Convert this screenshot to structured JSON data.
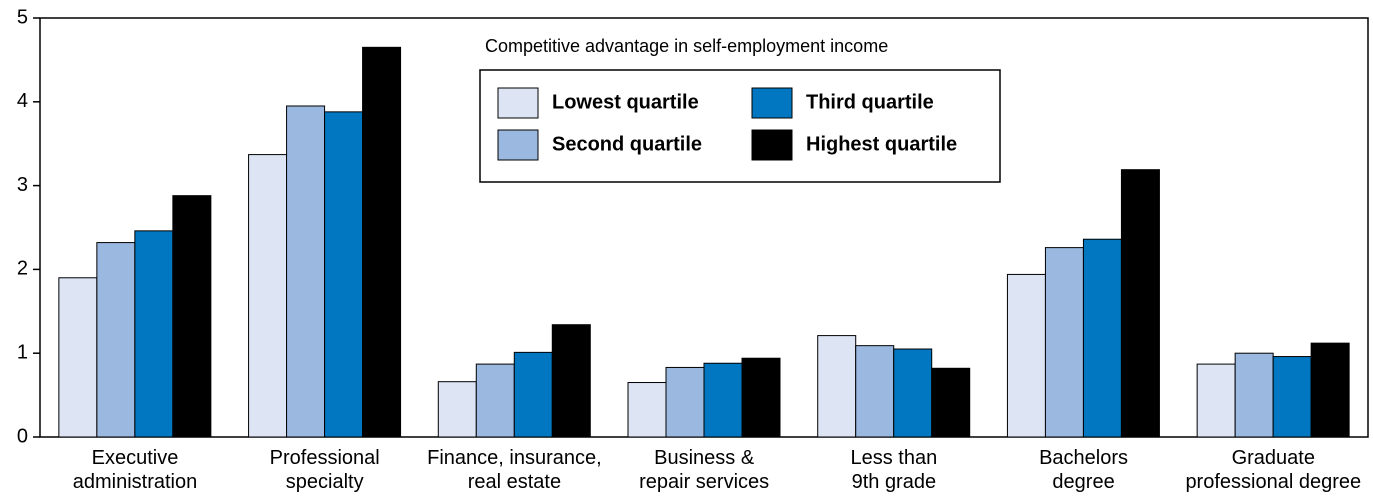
{
  "chart_data": {
    "type": "bar",
    "legend_title": "Competitive advantage in self-employment income",
    "categories": [
      "Executive\nadministration",
      "Professional\nspecialty",
      "Finance, insurance,\nreal estate",
      "Business &\nrepair services",
      "Less than\n9th grade",
      "Bachelors\ndegree",
      "Graduate\nprofessional degree"
    ],
    "series": [
      {
        "name": "Lowest quartile",
        "color": "#dde5f5",
        "values": [
          1.9,
          3.37,
          0.66,
          0.65,
          1.21,
          1.94,
          0.87
        ]
      },
      {
        "name": "Second quartile",
        "color": "#9bb8e0",
        "values": [
          2.32,
          3.95,
          0.87,
          0.83,
          1.09,
          2.26,
          1.0
        ]
      },
      {
        "name": "Third quartile",
        "color": "#0077c0",
        "values": [
          2.46,
          3.88,
          1.01,
          0.88,
          1.05,
          2.36,
          0.96
        ]
      },
      {
        "name": "Highest quartile",
        "color": "#000000",
        "values": [
          2.88,
          4.65,
          1.34,
          0.94,
          0.82,
          3.19,
          1.12
        ]
      }
    ],
    "ylim": [
      0,
      5
    ],
    "yticks": [
      0,
      1,
      2,
      3,
      4,
      5
    ]
  }
}
